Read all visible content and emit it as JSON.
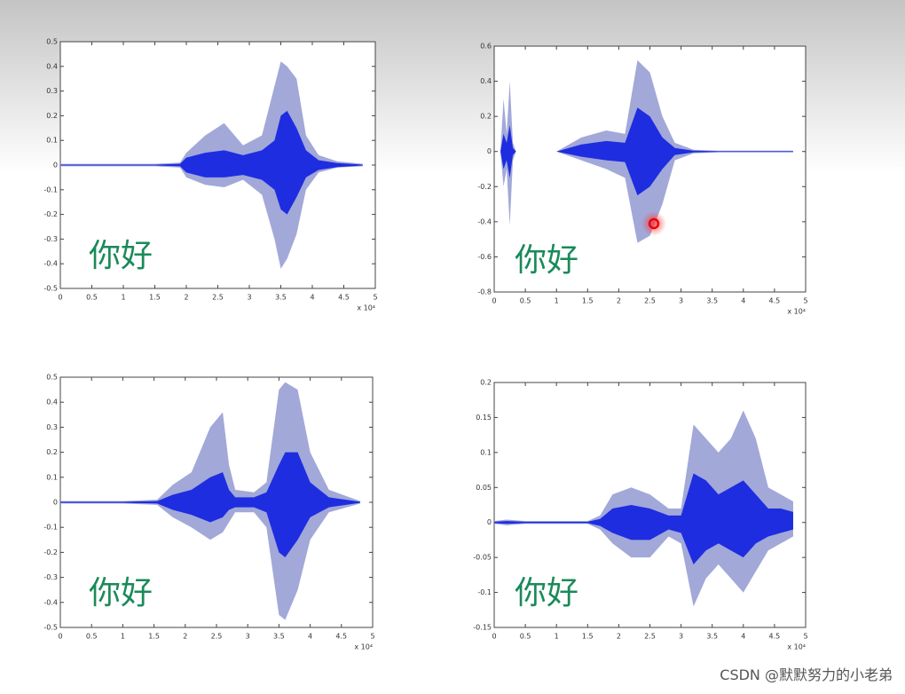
{
  "chart_data": [
    {
      "type": "band",
      "annotation": "你好",
      "x_label": "x 10⁴",
      "xlim": [
        0,
        5
      ],
      "xticks": [
        0,
        0.5,
        1,
        1.5,
        2,
        2.5,
        3,
        3.5,
        4,
        4.5,
        5
      ],
      "ylim": [
        -0.5,
        0.5
      ],
      "yticks": [
        -0.5,
        -0.4,
        -0.3,
        -0.2,
        -0.1,
        0,
        0.1,
        0.2,
        0.3,
        0.4,
        0.5
      ],
      "x": [
        0,
        1,
        1.5,
        1.9,
        2.0,
        2.3,
        2.6,
        2.9,
        3.2,
        3.4,
        3.5,
        3.6,
        3.75,
        3.9,
        4.1,
        4.4,
        4.8
      ],
      "bands": [
        {
          "color": "#a2a8d8",
          "upper": [
            0.005,
            0.005,
            0.005,
            0.01,
            0.05,
            0.12,
            0.17,
            0.08,
            0.12,
            0.32,
            0.42,
            0.4,
            0.35,
            0.12,
            0.04,
            0.015,
            0.005
          ],
          "lower": [
            -0.005,
            -0.005,
            -0.005,
            -0.01,
            -0.05,
            -0.08,
            -0.09,
            -0.06,
            -0.12,
            -0.3,
            -0.42,
            -0.38,
            -0.28,
            -0.1,
            -0.03,
            -0.01,
            -0.005
          ]
        },
        {
          "color": "#1e2de0",
          "upper": [
            0.002,
            0.002,
            0.002,
            0.005,
            0.03,
            0.05,
            0.06,
            0.04,
            0.06,
            0.1,
            0.2,
            0.22,
            0.15,
            0.06,
            0.02,
            0.008,
            0.002
          ],
          "lower": [
            -0.002,
            -0.002,
            -0.002,
            -0.005,
            -0.03,
            -0.05,
            -0.05,
            -0.04,
            -0.06,
            -0.1,
            -0.18,
            -0.2,
            -0.13,
            -0.05,
            -0.02,
            -0.008,
            -0.002
          ]
        }
      ]
    },
    {
      "type": "band",
      "annotation": "你好",
      "x_label": "x 10⁴",
      "xlim": [
        0,
        5
      ],
      "xticks": [
        0,
        0.5,
        1,
        1.5,
        2,
        2.5,
        3,
        3.5,
        4,
        4.5,
        5
      ],
      "ylim": [
        -0.8,
        0.6
      ],
      "yticks": [
        -0.8,
        -0.6,
        -0.4,
        -0.2,
        0,
        0.2,
        0.4,
        0.6
      ],
      "x": [
        0,
        0.1,
        0.15,
        0.2,
        0.25,
        0.3,
        0.35,
        0.5,
        1,
        1.4,
        1.8,
        2.1,
        2.3,
        2.5,
        2.7,
        2.9,
        3.2,
        3.6,
        4.8
      ],
      "bands": [
        {
          "color": "#a2a8d8",
          "upper": [
            0,
            0,
            0.3,
            0.1,
            0.4,
            0.05,
            0,
            0,
            0,
            0.08,
            0.12,
            0.1,
            0.52,
            0.45,
            0.2,
            0.05,
            0.01,
            0.005,
            0.005
          ],
          "lower": [
            0,
            0,
            -0.2,
            -0.1,
            -0.42,
            -0.05,
            0,
            0,
            0,
            -0.05,
            -0.1,
            -0.15,
            -0.52,
            -0.48,
            -0.3,
            -0.05,
            -0.01,
            -0.005,
            -0.005
          ]
        },
        {
          "color": "#1e2de0",
          "upper": [
            0,
            0,
            0.1,
            0.05,
            0.15,
            0.02,
            0,
            0,
            0,
            0.04,
            0.06,
            0.05,
            0.25,
            0.2,
            0.08,
            0.02,
            0.005,
            0.002,
            0.002
          ],
          "lower": [
            0,
            0,
            -0.1,
            -0.05,
            -0.15,
            -0.02,
            0,
            0,
            0,
            -0.03,
            -0.05,
            -0.06,
            -0.25,
            -0.2,
            -0.1,
            -0.02,
            -0.005,
            -0.002,
            -0.002
          ]
        }
      ]
    },
    {
      "type": "band",
      "annotation": "你好",
      "x_label": "x 10⁴",
      "xlim": [
        0,
        5
      ],
      "xticks": [
        0,
        0.5,
        1,
        1.5,
        2,
        2.5,
        3,
        3.5,
        4,
        4.5,
        5
      ],
      "ylim": [
        -0.5,
        0.5
      ],
      "yticks": [
        -0.5,
        -0.4,
        -0.3,
        -0.2,
        -0.1,
        0,
        0.1,
        0.2,
        0.3,
        0.4,
        0.5
      ],
      "x": [
        0,
        1,
        1.55,
        1.8,
        2.1,
        2.4,
        2.6,
        2.7,
        2.8,
        3.1,
        3.3,
        3.5,
        3.6,
        3.8,
        4.0,
        4.3,
        4.8
      ],
      "bands": [
        {
          "color": "#a2a8d8",
          "upper": [
            0.005,
            0.005,
            0.01,
            0.07,
            0.12,
            0.3,
            0.36,
            0.15,
            0.05,
            0.04,
            0.08,
            0.45,
            0.48,
            0.45,
            0.2,
            0.05,
            0.005
          ],
          "lower": [
            -0.005,
            -0.005,
            -0.01,
            -0.06,
            -0.1,
            -0.15,
            -0.12,
            -0.08,
            -0.04,
            -0.04,
            -0.1,
            -0.45,
            -0.47,
            -0.35,
            -0.15,
            -0.04,
            -0.005
          ]
        },
        {
          "color": "#1e2de0",
          "upper": [
            0.002,
            0.002,
            0.005,
            0.03,
            0.05,
            0.1,
            0.12,
            0.05,
            0.02,
            0.02,
            0.04,
            0.15,
            0.2,
            0.2,
            0.08,
            0.02,
            0.002
          ],
          "lower": [
            -0.002,
            -0.002,
            -0.005,
            -0.03,
            -0.05,
            -0.08,
            -0.06,
            -0.03,
            -0.02,
            -0.02,
            -0.04,
            -0.2,
            -0.22,
            -0.15,
            -0.06,
            -0.02,
            -0.002
          ]
        }
      ]
    },
    {
      "type": "band",
      "annotation": "你好",
      "x_label": "x 10⁴",
      "xlim": [
        0,
        5
      ],
      "xticks": [
        0,
        0.5,
        1,
        1.5,
        2,
        2.5,
        3,
        3.5,
        4,
        4.5,
        5
      ],
      "ylim": [
        -0.15,
        0.2
      ],
      "yticks": [
        -0.15,
        -0.1,
        -0.05,
        0,
        0.05,
        0.1,
        0.15,
        0.2
      ],
      "x": [
        0,
        0.2,
        0.5,
        1,
        1.5,
        1.7,
        1.9,
        2.2,
        2.5,
        2.8,
        3.0,
        3.2,
        3.4,
        3.6,
        3.8,
        4.0,
        4.2,
        4.4,
        4.6,
        4.8
      ],
      "bands": [
        {
          "color": "#a2a8d8",
          "upper": [
            0.002,
            0.004,
            0.002,
            0.002,
            0.002,
            0.01,
            0.04,
            0.05,
            0.04,
            0.02,
            0.02,
            0.14,
            0.12,
            0.1,
            0.12,
            0.16,
            0.12,
            0.05,
            0.04,
            0.03
          ],
          "lower": [
            -0.002,
            -0.004,
            -0.002,
            -0.002,
            -0.002,
            -0.01,
            -0.03,
            -0.05,
            -0.05,
            -0.02,
            -0.03,
            -0.12,
            -0.08,
            -0.06,
            -0.08,
            -0.1,
            -0.07,
            -0.04,
            -0.03,
            -0.02
          ]
        },
        {
          "color": "#1e2de0",
          "upper": [
            0.001,
            0.002,
            0.001,
            0.001,
            0.001,
            0.005,
            0.02,
            0.025,
            0.02,
            0.01,
            0.01,
            0.07,
            0.06,
            0.04,
            0.05,
            0.06,
            0.04,
            0.02,
            0.02,
            0.015
          ],
          "lower": [
            -0.001,
            -0.002,
            -0.001,
            -0.001,
            -0.001,
            -0.005,
            -0.015,
            -0.025,
            -0.025,
            -0.01,
            -0.015,
            -0.06,
            -0.04,
            -0.03,
            -0.04,
            -0.05,
            -0.03,
            -0.02,
            -0.015,
            -0.01
          ]
        }
      ]
    }
  ],
  "watermark": "CSDN @默默努力的小老弟"
}
